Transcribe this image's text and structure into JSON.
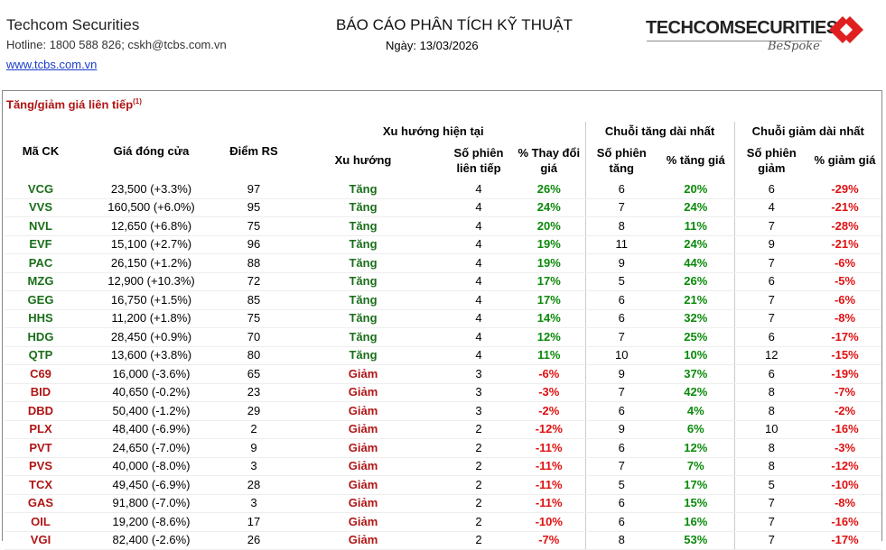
{
  "header": {
    "company": "Techcom Securities",
    "contact": "Hotline: 1800 588 826; cskh@tcbs.com.vn",
    "website": "www.tcbs.com.vn",
    "report_title": "BÁO CÁO PHÂN TÍCH KỸ THUẬT",
    "date": "Ngày: 13/03/2026",
    "logo": "TECHCOMSECURITIES",
    "logo_tagline": "BeSpoke"
  },
  "section": {
    "title": "Tăng/giảm giá liên tiếp",
    "note": "(1)"
  },
  "table": {
    "groups": [
      "Xu hướng hiện tại",
      "Chuỗi tăng dài nhất",
      "Chuỗi giảm dài nhất"
    ],
    "columns": [
      "Mã CK",
      "Giá đóng cửa",
      "Điểm RS",
      "Xu hướng",
      "Số phiên liên tiếp",
      "% Thay đổi giá",
      "Số phiên tăng",
      "% tăng giá",
      "Số phiên giảm",
      "% giảm giá"
    ],
    "colors": {
      "up": "#0a8a0a",
      "down": "#e01010",
      "ticker_up": "#1a6e1a",
      "ticker_down": "#b01515"
    },
    "rows": [
      [
        "VCG",
        "23,500 (+3.3%)",
        "97",
        "Tăng",
        "4",
        "26%",
        "6",
        "20%",
        "6",
        "-29%"
      ],
      [
        "VVS",
        "160,500 (+6.0%)",
        "95",
        "Tăng",
        "4",
        "24%",
        "7",
        "24%",
        "4",
        "-21%"
      ],
      [
        "NVL",
        "12,650 (+6.8%)",
        "75",
        "Tăng",
        "4",
        "20%",
        "8",
        "11%",
        "7",
        "-28%"
      ],
      [
        "EVF",
        "15,100 (+2.7%)",
        "96",
        "Tăng",
        "4",
        "19%",
        "11",
        "24%",
        "9",
        "-21%"
      ],
      [
        "PAC",
        "26,150 (+1.2%)",
        "88",
        "Tăng",
        "4",
        "19%",
        "9",
        "44%",
        "7",
        "-6%"
      ],
      [
        "MZG",
        "12,900 (+10.3%)",
        "72",
        "Tăng",
        "4",
        "17%",
        "5",
        "26%",
        "6",
        "-5%"
      ],
      [
        "GEG",
        "16,750 (+1.5%)",
        "85",
        "Tăng",
        "4",
        "17%",
        "6",
        "21%",
        "7",
        "-6%"
      ],
      [
        "HHS",
        "11,200 (+1.8%)",
        "75",
        "Tăng",
        "4",
        "14%",
        "6",
        "32%",
        "7",
        "-8%"
      ],
      [
        "HDG",
        "28,450 (+0.9%)",
        "70",
        "Tăng",
        "4",
        "12%",
        "7",
        "25%",
        "6",
        "-17%"
      ],
      [
        "QTP",
        "13,600 (+3.8%)",
        "80",
        "Tăng",
        "4",
        "11%",
        "10",
        "10%",
        "12",
        "-15%"
      ],
      [
        "C69",
        "16,000 (-3.6%)",
        "65",
        "Giảm",
        "3",
        "-6%",
        "9",
        "37%",
        "6",
        "-19%"
      ],
      [
        "BID",
        "40,650 (-0.2%)",
        "23",
        "Giảm",
        "3",
        "-3%",
        "7",
        "42%",
        "8",
        "-7%"
      ],
      [
        "DBD",
        "50,400 (-1.2%)",
        "29",
        "Giảm",
        "3",
        "-2%",
        "6",
        "4%",
        "8",
        "-2%"
      ],
      [
        "PLX",
        "48,400 (-6.9%)",
        "2",
        "Giảm",
        "2",
        "-12%",
        "9",
        "6%",
        "10",
        "-16%"
      ],
      [
        "PVT",
        "24,650 (-7.0%)",
        "9",
        "Giảm",
        "2",
        "-11%",
        "6",
        "12%",
        "8",
        "-3%"
      ],
      [
        "PVS",
        "40,000 (-8.0%)",
        "3",
        "Giảm",
        "2",
        "-11%",
        "7",
        "7%",
        "8",
        "-12%"
      ],
      [
        "TCX",
        "49,450 (-6.9%)",
        "28",
        "Giảm",
        "2",
        "-11%",
        "5",
        "17%",
        "5",
        "-10%"
      ],
      [
        "GAS",
        "91,800 (-7.0%)",
        "3",
        "Giảm",
        "2",
        "-11%",
        "6",
        "15%",
        "7",
        "-8%"
      ],
      [
        "OIL",
        "19,200 (-8.6%)",
        "17",
        "Giảm",
        "2",
        "-10%",
        "6",
        "16%",
        "7",
        "-16%"
      ],
      [
        "VGI",
        "82,400 (-2.6%)",
        "26",
        "Giảm",
        "2",
        "-7%",
        "8",
        "53%",
        "7",
        "-17%"
      ]
    ]
  }
}
